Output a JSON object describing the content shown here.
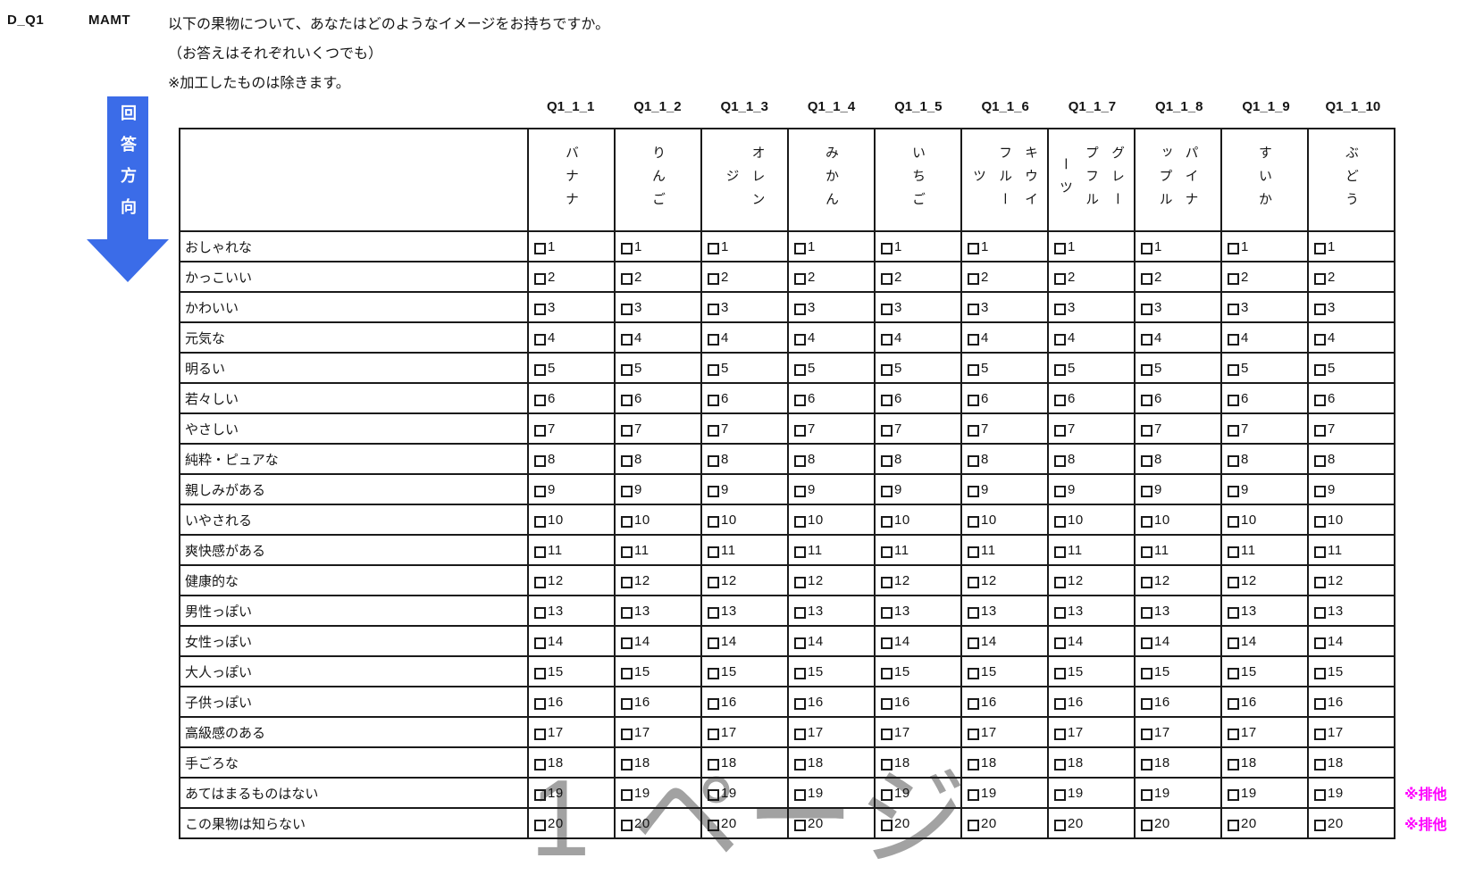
{
  "header": {
    "question_id": "D_Q1",
    "question_type": "MAMT",
    "question_text": "以下の果物について、あなたはどのようなイメージをお持ちですか。",
    "answer_note": "（お答えはそれぞれいくつでも）",
    "exclusion_note": "※加工したものは除きます。"
  },
  "arrow": {
    "label": "回答方向",
    "color": "#3B6CE8"
  },
  "table": {
    "column_codes": [
      "Q1_1_1",
      "Q1_1_2",
      "Q1_1_3",
      "Q1_1_4",
      "Q1_1_5",
      "Q1_1_6",
      "Q1_1_7",
      "Q1_1_8",
      "Q1_1_9",
      "Q1_1_10"
    ],
    "column_headers": [
      "バナナ",
      "りんご",
      "オレンジ",
      "みかん",
      "いちご",
      "キウイフルーツ",
      "グレープフルーツ",
      "パイナップル",
      "すいか",
      "ぶどう"
    ],
    "rows": [
      {
        "label": "おしゃれな",
        "value": 1,
        "exclusive": false
      },
      {
        "label": "かっこいい",
        "value": 2,
        "exclusive": false
      },
      {
        "label": "かわいい",
        "value": 3,
        "exclusive": false
      },
      {
        "label": "元気な",
        "value": 4,
        "exclusive": false
      },
      {
        "label": "明るい",
        "value": 5,
        "exclusive": false
      },
      {
        "label": "若々しい",
        "value": 6,
        "exclusive": false
      },
      {
        "label": "やさしい",
        "value": 7,
        "exclusive": false
      },
      {
        "label": "純粋・ピュアな",
        "value": 8,
        "exclusive": false
      },
      {
        "label": "親しみがある",
        "value": 9,
        "exclusive": false
      },
      {
        "label": "いやされる",
        "value": 10,
        "exclusive": false
      },
      {
        "label": "爽快感がある",
        "value": 11,
        "exclusive": false
      },
      {
        "label": "健康的な",
        "value": 12,
        "exclusive": false
      },
      {
        "label": "男性っぽい",
        "value": 13,
        "exclusive": false
      },
      {
        "label": "女性っぽい",
        "value": 14,
        "exclusive": false
      },
      {
        "label": "大人っぽい",
        "value": 15,
        "exclusive": false
      },
      {
        "label": "子供っぽい",
        "value": 16,
        "exclusive": false
      },
      {
        "label": "高級感のある",
        "value": 17,
        "exclusive": false
      },
      {
        "label": "手ごろな",
        "value": 18,
        "exclusive": false
      },
      {
        "label": "あてはまるものはない",
        "value": 19,
        "exclusive": true
      },
      {
        "label": "この果物は知らない",
        "value": 20,
        "exclusive": true
      }
    ]
  },
  "annotations": {
    "exclusive_label": "※排他",
    "exclusive_color": "#FF00FF"
  },
  "watermark": {
    "text": "1 ページ",
    "color": "#A2A2A2"
  }
}
